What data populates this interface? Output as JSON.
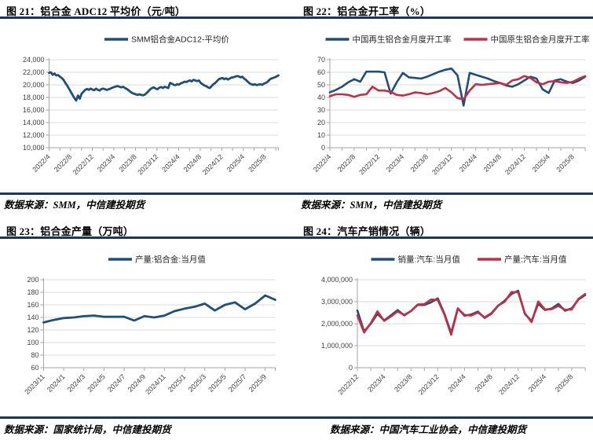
{
  "colors": {
    "rule": "#17375D",
    "blue": "#1F4E79",
    "red": "#C22E44",
    "grid": "#D9D9D9",
    "axis": "#A6A6A6",
    "tick_label": "#404040"
  },
  "panels": [
    {
      "title": "图 21：铝合金 ADC12 平均价（元/吨）",
      "source": "数据来源：SMM，中信建投期货"
    },
    {
      "title": "图 22：铝合金开工率（%）",
      "source": "数据来源：SMM，中信建投期货"
    },
    {
      "title": "图 23：铝合金产量（万吨）",
      "source": "数据来源：国家统计局，中信建投期货"
    },
    {
      "title": "图 24：汽车产销情况（辆）",
      "source": "数据来源：中国汽车工业协会，中信建投期货"
    }
  ],
  "chart_data": [
    {
      "type": "line",
      "title": "铝合金 ADC12 平均价（元/吨）",
      "xlabel": "",
      "ylabel": "",
      "ylim": [
        10000,
        24000
      ],
      "ystep": 2000,
      "y_format": "comma",
      "grid": true,
      "minor_ticks": true,
      "legend_position": "top",
      "x_tick_labels": [
        "2022/4",
        "2022/8",
        "2022/12",
        "2023/4",
        "2023/8",
        "2023/12",
        "2024/4",
        "2024/8",
        "2024/12",
        "2025/4",
        "2025/8"
      ],
      "x_tick_months": [
        0,
        4,
        8,
        12,
        16,
        20,
        24,
        28,
        32,
        36,
        40
      ],
      "x_domain_months": 42.5,
      "series": [
        {
          "name": "SMM铝合金ADC12-平均价",
          "color": "#1F4E79",
          "values": [
            21900,
            22000,
            21600,
            21800,
            21500,
            21550,
            21300,
            21100,
            20800,
            20300,
            19900,
            19400,
            18900,
            18400,
            17900,
            17500,
            18300,
            17800,
            18600,
            18900,
            19200,
            19350,
            19200,
            19400,
            19250,
            19150,
            19400,
            19200,
            19100,
            19350,
            19400,
            19300,
            19200,
            19300,
            19400,
            19550,
            19650,
            19750,
            19800,
            19700,
            19600,
            19700,
            19500,
            19350,
            19150,
            18900,
            18700,
            18600,
            18500,
            18400,
            18500,
            18400,
            18350,
            18450,
            18700,
            19000,
            19300,
            19500,
            19600,
            19400,
            19300,
            19550,
            19650,
            19500,
            19700,
            19600,
            19500,
            20300,
            20200,
            20000,
            19950,
            20100,
            20050,
            20250,
            20350,
            20500,
            20450,
            20600,
            20700,
            20550,
            20800,
            20700,
            20600,
            20700,
            20300,
            20100,
            19900,
            19800,
            19600,
            19500,
            19800,
            20100,
            20300,
            20600,
            20900,
            21000,
            21100,
            20900,
            21050,
            20850,
            21000,
            21150,
            21200,
            21300,
            21400,
            21350,
            21200,
            21300,
            21000,
            20800,
            20500,
            20250,
            20100,
            20000,
            20100,
            19950,
            20050,
            20100,
            20000,
            20200,
            20300,
            20500,
            20800,
            21000,
            21100,
            21200,
            21350,
            21500
          ]
        }
      ]
    },
    {
      "type": "line",
      "title": "铝合金开工率（%）",
      "xlabel": "",
      "ylabel": "",
      "ylim": [
        0,
        70
      ],
      "ystep": 10,
      "y_format": "plain",
      "grid": true,
      "minor_ticks": true,
      "legend_position": "top",
      "x_tick_labels": [
        "2022/4",
        "2022/8",
        "2022/12",
        "2023/4",
        "2023/8",
        "2023/12",
        "2024/4",
        "2024/8",
        "2024/12",
        "2025/4",
        "2025/8"
      ],
      "x_tick_months": [
        0,
        4,
        8,
        12,
        16,
        20,
        24,
        28,
        32,
        36,
        40
      ],
      "x_domain_months": 42,
      "series": [
        {
          "name": "中国再生铝合金月度开工率",
          "color": "#1F4E79",
          "values": [
            44,
            46,
            48.5,
            52,
            54.5,
            52.5,
            60.5,
            60.5,
            60.5,
            60,
            43,
            52,
            59.5,
            56,
            55.5,
            55,
            56.5,
            58.5,
            60.5,
            62,
            63,
            57.5,
            33.5,
            59.5,
            58,
            56.5,
            55,
            53,
            51.5,
            49.5,
            48.5,
            50.5,
            53.5,
            56.5,
            55,
            46.5,
            43.5,
            53.5,
            54.5,
            52.5,
            51.5,
            53.5,
            56.5
          ]
        },
        {
          "name": "中国原生铝合金月度开工率",
          "color": "#C22E44",
          "values": [
            41,
            42.5,
            42.5,
            42,
            40.5,
            42,
            42.5,
            48.5,
            45.5,
            45.5,
            44.5,
            42,
            41.5,
            42.5,
            44,
            43.5,
            42.5,
            43.5,
            45,
            47.5,
            44,
            39.5,
            38.5,
            45.5,
            50.5,
            50,
            50.5,
            51,
            51.5,
            50,
            53.5,
            54.5,
            57,
            55.5,
            52,
            50.5,
            52.5,
            53,
            52,
            51.5,
            52.5,
            55,
            57
          ]
        }
      ]
    },
    {
      "type": "line",
      "title": "铝合金产量（万吨）",
      "xlabel": "",
      "ylabel": "",
      "ylim": [
        60,
        200
      ],
      "ystep": 20,
      "y_format": "plain",
      "grid": true,
      "minor_ticks": false,
      "legend_position": "top",
      "x_tick_labels": [
        "2023/11",
        "2024/1",
        "2024/3",
        "2024/5",
        "2024/7",
        "2024/9",
        "2024/11",
        "2025/1",
        "2025/3",
        "2025/5",
        "2025/7",
        "2025/9"
      ],
      "x_tick_months": [
        0,
        2,
        4,
        6,
        8,
        10,
        12,
        14,
        16,
        18,
        20,
        22
      ],
      "x_domain_months": 23,
      "series": [
        {
          "name": "产量:铝合金:当月值",
          "color": "#1F4E79",
          "values": [
            132,
            136,
            139,
            140,
            142,
            143,
            141,
            141,
            141,
            135,
            142,
            140,
            143,
            150,
            154,
            157,
            162,
            151,
            160,
            164,
            153,
            162,
            175,
            168
          ]
        }
      ]
    },
    {
      "type": "line",
      "title": "汽车产销情况（辆）",
      "xlabel": "",
      "ylabel": "",
      "ylim": [
        0,
        4000000
      ],
      "ystep": 1000000,
      "y_format": "comma",
      "grid": true,
      "minor_ticks": true,
      "legend_position": "top",
      "x_tick_labels": [
        "2022/12",
        "2023/4",
        "2023/8",
        "2023/12",
        "2024/4",
        "2024/8",
        "2024/12",
        "2025/4",
        "2025/8"
      ],
      "x_tick_months": [
        0,
        4,
        8,
        12,
        16,
        20,
        24,
        28,
        32
      ],
      "x_domain_months": 34,
      "series": [
        {
          "name": "销量:汽车:当月值",
          "color": "#1F4E79",
          "values": [
            2600000,
            1650000,
            2000000,
            2450000,
            2150000,
            2380000,
            2620000,
            2380000,
            2580000,
            2850000,
            2850000,
            2970000,
            3150000,
            2450000,
            1580000,
            2700000,
            2360000,
            2420000,
            2550000,
            2260000,
            2450000,
            2810000,
            3050000,
            3350000,
            3500000,
            2450000,
            2120000,
            2910000,
            2620000,
            2690000,
            2900000,
            2590000,
            2700000,
            3100000,
            3300000
          ]
        },
        {
          "name": "产量:汽车:当月值",
          "color": "#C22E44",
          "values": [
            2380000,
            1600000,
            2030000,
            2560000,
            2130000,
            2330000,
            2560000,
            2400000,
            2570000,
            2870000,
            2890000,
            3100000,
            3080000,
            2410000,
            1500000,
            2680000,
            2400000,
            2370000,
            2510000,
            2290000,
            2480000,
            2820000,
            3000000,
            3440000,
            3430000,
            2480000,
            2070000,
            3010000,
            2650000,
            2660000,
            2810000,
            2630000,
            2650000,
            3130000,
            3350000
          ]
        }
      ]
    }
  ]
}
